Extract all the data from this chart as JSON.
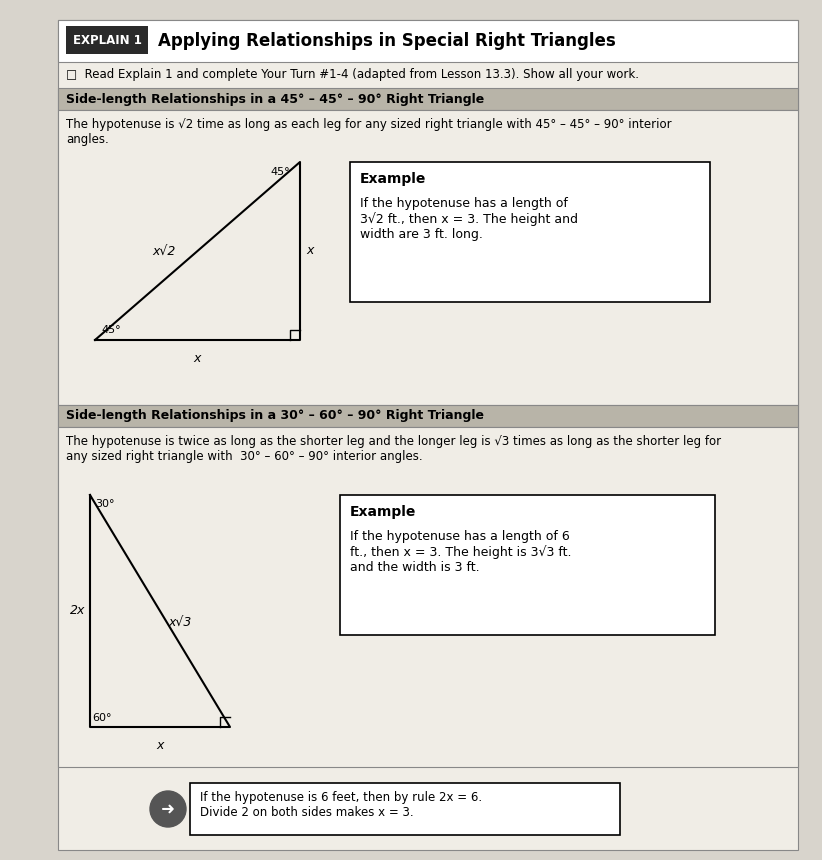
{
  "title_main": "Applying Relationships in Special Right Triangles",
  "explain_label": "EXPLAIN 1",
  "subtitle": "□  Read Explain 1 and complete Your Turn #1-4 (adapted from Lesson 13.3). Show all your work.",
  "section1_header": "Side-length Relationships in a 45° – 45° – 90° Right Triangle",
  "section1_body": "The hypotenuse is √2 time as long as each leg for any sized right triangle with 45° – 45° – 90° interior\nangles.",
  "section1_example_title": "Example",
  "section1_example_body": "If the hypotenuse has a length of\n3√2 ft., then x = 3. The height and\nwidth are 3 ft. long.",
  "section2_header": "Side-length Relationships in a 30° – 60° – 90° Right Triangle",
  "section2_body": "The hypotenuse is twice as long as the shorter leg and the longer leg is √3 times as long as the shorter leg for\nany sized right triangle with  30° – 60° – 90° interior angles.",
  "section2_example_title": "Example",
  "section2_example_body": "If the hypotenuse has a length of 6\nft., then x = 3. The height is 3√3 ft.\nand the width is 3 ft.",
  "bottom_note": "If the hypotenuse is 6 feet, then by rule 2x = 6.\nDivide 2 on both sides makes x = 3.",
  "bg_color": "#d8d4cc",
  "paper_color": "#f0ede6",
  "section_header_color": "#b8b4a8",
  "title_bg_color": "#2a2a2a",
  "white": "#ffffff",
  "black": "#000000",
  "border_color": "#888888"
}
